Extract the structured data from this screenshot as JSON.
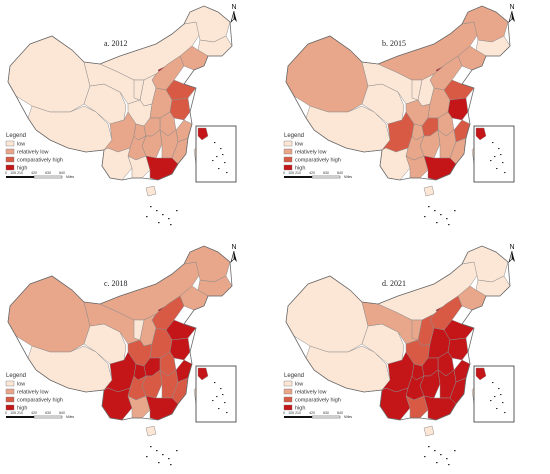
{
  "legend_colors": {
    "low": "#FCE6D6",
    "relatively_low": "#E8A68A",
    "comparatively_high": "#D85A45",
    "high": "#C41518"
  },
  "panels": [
    {
      "id": "a",
      "year_label": "a. 2012",
      "north": "N",
      "legend": {
        "title": "Legend",
        "items": [
          {
            "label": "low",
            "level": "low"
          },
          {
            "label": "relatively low",
            "level": "relatively_low"
          },
          {
            "label": "comparatively high",
            "level": "comparatively_high"
          },
          {
            "label": "high",
            "level": "high"
          }
        ]
      },
      "scale_labels": [
        "0",
        "105",
        "210",
        "420",
        "630",
        "840"
      ],
      "scale_unit": "Miles",
      "province_levels": {
        "xinjiang": "low",
        "tibet": "low",
        "qinghai": "low",
        "gansu": "low",
        "inner_mongolia": "low",
        "heilongjiang": "low",
        "jilin": "low",
        "liaoning": "relatively_low",
        "sichuan": "relatively_low",
        "yunnan": "low",
        "guizhou": "relatively_low",
        "guangxi": "low",
        "hunan": "relatively_low",
        "hubei": "relatively_low",
        "henan": "relatively_low",
        "shandong": "comparatively_high",
        "jiangsu": "comparatively_high",
        "anhui": "relatively_low",
        "zhejiang": "relatively_low",
        "fujian": "relatively_low",
        "jiangxi": "relatively_low",
        "guangdong": "high",
        "beijing": "high",
        "hebei": "relatively_low",
        "shanxi": "low",
        "shaanxi": "low",
        "ningxia": "low",
        "hainan": "low",
        "chongqing": "relatively_low",
        "taiwan": "low"
      }
    },
    {
      "id": "b",
      "year_label": "b. 2015",
      "north": "N",
      "legend": {
        "title": "Legend",
        "items": [
          {
            "label": "low",
            "level": "low"
          },
          {
            "label": "relatively low",
            "level": "relatively_low"
          },
          {
            "label": "comparatively high",
            "level": "comparatively_high"
          },
          {
            "label": "high",
            "level": "high"
          }
        ]
      },
      "scale_labels": [
        "0",
        "105",
        "210",
        "420",
        "630",
        "840"
      ],
      "scale_unit": "Miles",
      "province_levels": {
        "xinjiang": "relatively_low",
        "tibet": "low",
        "qinghai": "low",
        "gansu": "low",
        "inner_mongolia": "relatively_low",
        "heilongjiang": "relatively_low",
        "jilin": "low",
        "liaoning": "relatively_low",
        "sichuan": "comparatively_high",
        "yunnan": "low",
        "guizhou": "relatively_low",
        "guangxi": "relatively_low",
        "hunan": "relatively_low",
        "hubei": "comparatively_high",
        "henan": "relatively_low",
        "shandong": "comparatively_high",
        "jiangsu": "high",
        "anhui": "relatively_low",
        "zhejiang": "comparatively_high",
        "fujian": "relatively_low",
        "jiangxi": "relatively_low",
        "guangdong": "high",
        "beijing": "high",
        "hebei": "relatively_low",
        "shanxi": "low",
        "shaanxi": "relatively_low",
        "ningxia": "low",
        "hainan": "low",
        "chongqing": "relatively_low",
        "taiwan": "low"
      }
    },
    {
      "id": "c",
      "year_label": "c. 2018",
      "north": "N",
      "legend": {
        "title": "Legend",
        "items": [
          {
            "label": "low",
            "level": "low"
          },
          {
            "label": "relatively low",
            "level": "relatively_low"
          },
          {
            "label": "comparatively high",
            "level": "comparatively_high"
          },
          {
            "label": "high",
            "level": "high"
          }
        ]
      },
      "scale_labels": [
        "0",
        "105",
        "210",
        "420",
        "630",
        "840"
      ],
      "scale_unit": "Miles",
      "province_levels": {
        "xinjiang": "relatively_low",
        "tibet": "low",
        "qinghai": "low",
        "gansu": "relatively_low",
        "inner_mongolia": "relatively_low",
        "heilongjiang": "relatively_low",
        "jilin": "relatively_low",
        "liaoning": "relatively_low",
        "sichuan": "high",
        "yunnan": "high",
        "guizhou": "comparatively_high",
        "guangxi": "relatively_low",
        "hunan": "comparatively_high",
        "hubei": "high",
        "henan": "comparatively_high",
        "shandong": "high",
        "jiangsu": "high",
        "anhui": "comparatively_high",
        "zhejiang": "high",
        "fujian": "comparatively_high",
        "jiangxi": "comparatively_high",
        "guangdong": "high",
        "beijing": "high",
        "hebei": "comparatively_high",
        "shanxi": "relatively_low",
        "shaanxi": "comparatively_high",
        "ningxia": "low",
        "hainan": "low",
        "chongqing": "high",
        "taiwan": "low"
      }
    },
    {
      "id": "d",
      "year_label": "d. 2021",
      "north": "N",
      "legend": {
        "title": "Legend",
        "items": [
          {
            "label": "low",
            "level": "low"
          },
          {
            "label": "relatively low",
            "level": "relatively_low"
          },
          {
            "label": "comparatively high",
            "level": "comparatively_high"
          },
          {
            "label": "high",
            "level": "high"
          }
        ]
      },
      "scale_labels": [
        "0",
        "105",
        "210",
        "420",
        "630",
        "840"
      ],
      "scale_unit": "Miles",
      "province_levels": {
        "xinjiang": "low",
        "tibet": "low",
        "qinghai": "low",
        "gansu": "relatively_low",
        "inner_mongolia": "low",
        "heilongjiang": "low",
        "jilin": "low",
        "liaoning": "relatively_low",
        "sichuan": "high",
        "yunnan": "high",
        "guizhou": "high",
        "guangxi": "comparatively_high",
        "hunan": "high",
        "hubei": "high",
        "henan": "high",
        "shandong": "high",
        "jiangsu": "high",
        "anhui": "high",
        "zhejiang": "high",
        "fujian": "high",
        "jiangxi": "high",
        "guangdong": "high",
        "beijing": "high",
        "hebei": "comparatively_high",
        "shanxi": "comparatively_high",
        "shaanxi": "comparatively_high",
        "ningxia": "relatively_low",
        "hainan": "low",
        "chongqing": "high",
        "taiwan": "low"
      }
    }
  ]
}
